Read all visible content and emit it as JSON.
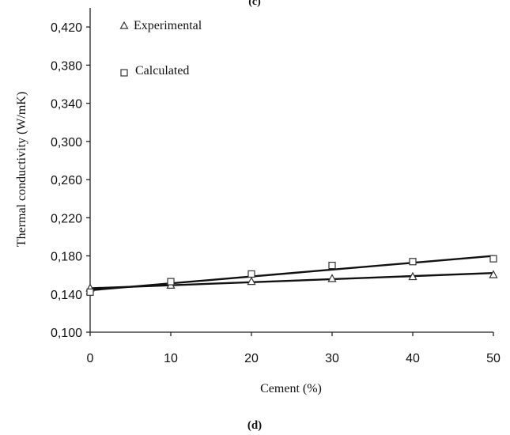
{
  "chart_data": {
    "type": "scatter",
    "top_label": "(c)",
    "caption": "(d)",
    "xlabel": "Cement  (%)",
    "ylabel": "Thermal conductivity (W/mK)",
    "xlim": [
      0,
      50
    ],
    "ylim": [
      0.1,
      0.44
    ],
    "x_ticks": [
      0,
      10,
      20,
      30,
      40,
      50
    ],
    "x_tick_labels": [
      "0",
      "10",
      "20",
      "30",
      "40",
      "50"
    ],
    "y_ticks": [
      0.1,
      0.14,
      0.18,
      0.22,
      0.26,
      0.3,
      0.34,
      0.38,
      0.42
    ],
    "y_tick_labels": [
      "0,100",
      "0,140",
      "0,180",
      "0,220",
      "0,260",
      "0,300",
      "0,340",
      "0,380",
      "0,420"
    ],
    "grid": false,
    "legend_position": "top-left",
    "series": [
      {
        "name": "Experimental",
        "marker": "triangle",
        "x": [
          0,
          10,
          20,
          30,
          40,
          50
        ],
        "y": [
          0.146,
          0.149,
          0.153,
          0.156,
          0.158,
          0.16
        ],
        "trendline": [
          [
            0,
            0.146
          ],
          [
            50,
            0.162
          ]
        ]
      },
      {
        "name": "Calculated",
        "marker": "square",
        "x": [
          0,
          10,
          20,
          30,
          40,
          50
        ],
        "y": [
          0.142,
          0.153,
          0.161,
          0.17,
          0.174,
          0.177
        ],
        "trendline": [
          [
            0,
            0.144
          ],
          [
            50,
            0.18
          ]
        ]
      }
    ]
  }
}
